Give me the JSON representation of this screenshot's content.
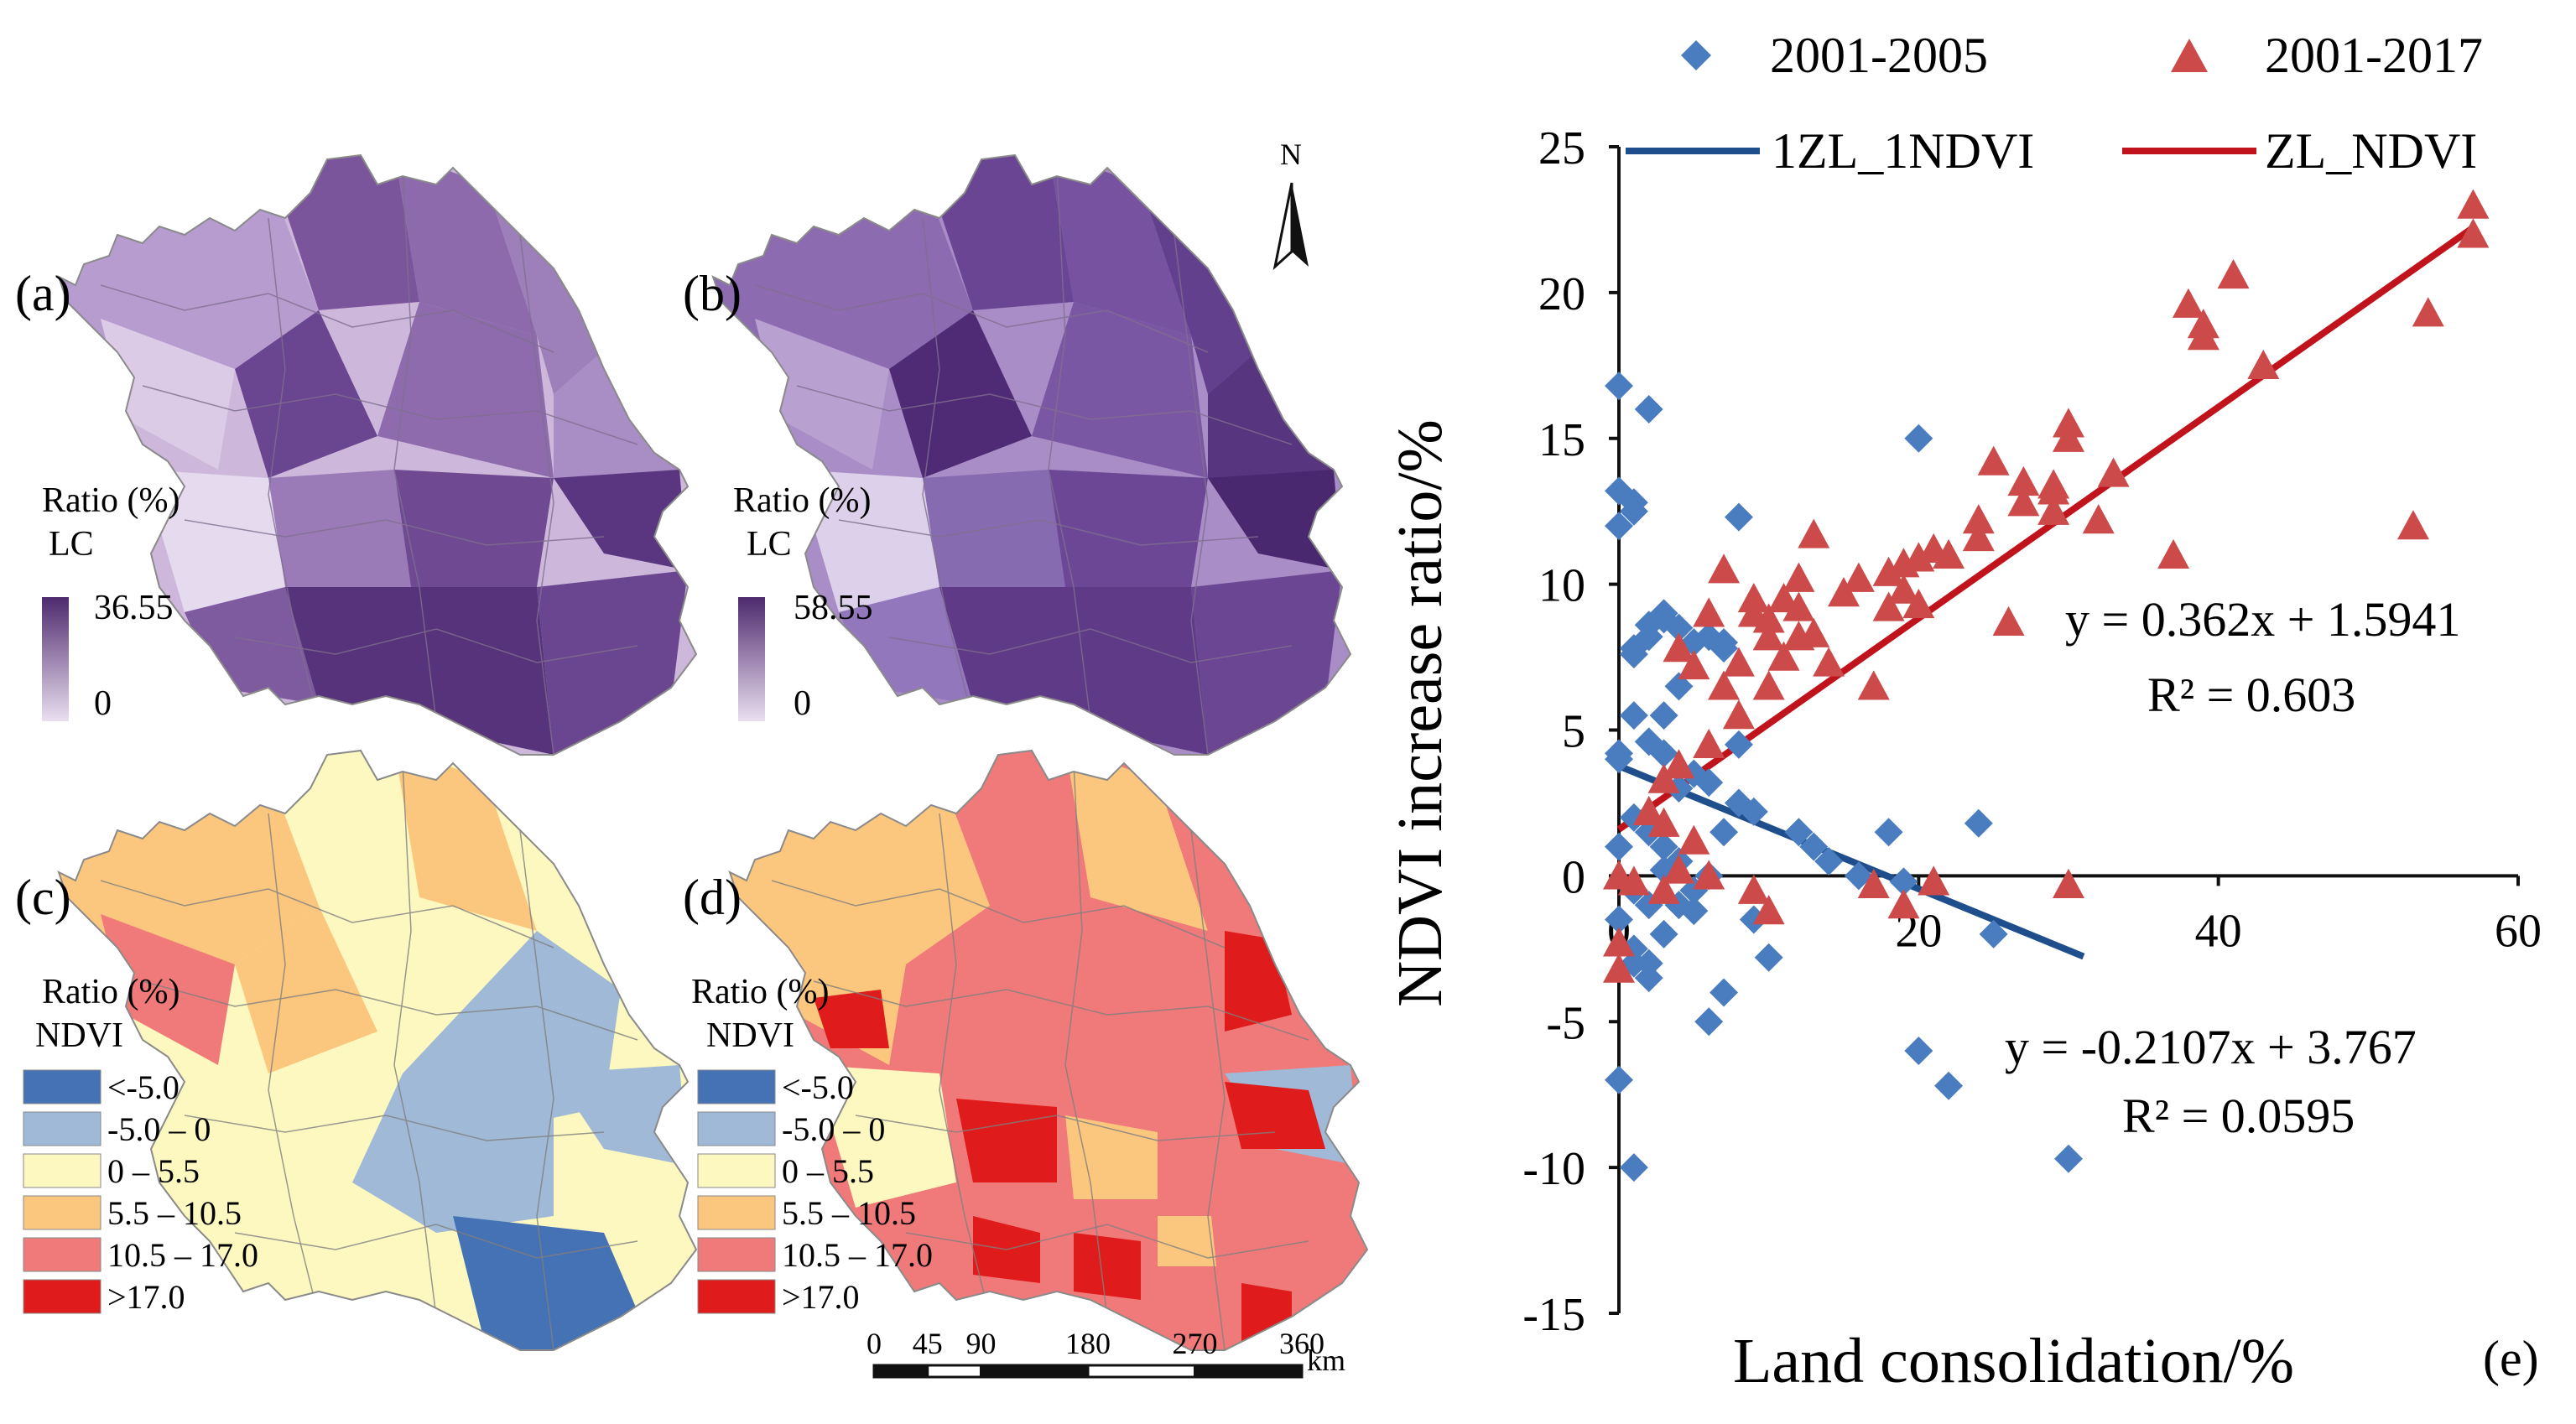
{
  "figure": {
    "panel_tags": {
      "a": "(a)",
      "b": "(b)",
      "c": "(c)",
      "d": "(d)",
      "e": "(e)"
    },
    "north_label": "N",
    "scale_bar": {
      "ticks": [
        "0",
        "45",
        "90",
        "180",
        "270",
        "360"
      ],
      "unit": "km"
    }
  },
  "maps": {
    "lc_a": {
      "ratio_label": "Ratio (%)",
      "var_label": "LC",
      "max": "36.55",
      "min": "0"
    },
    "lc_b": {
      "ratio_label": "Ratio (%)",
      "var_label": "LC",
      "max": "58.55",
      "min": "0"
    },
    "ndvi_c": {
      "ratio_label": "Ratio (%)",
      "var_label": "NDVI"
    },
    "ndvi_d": {
      "ratio_label": "Ratio (%)",
      "var_label": "NDVI"
    },
    "ndvi_classes": [
      {
        "label": "<-5.0",
        "color": "#4472b4"
      },
      {
        "label": "-5.0 – 0",
        "color": "#9fb9d6"
      },
      {
        "label": "0 – 5.5",
        "color": "#fdf8c0"
      },
      {
        "label": "5.5 – 10.5",
        "color": "#fbc77e"
      },
      {
        "label": "10.5 – 17.0",
        "color": "#f07a7a"
      },
      {
        "label": ">17.0",
        "color": "#e01b1b"
      }
    ],
    "lc_colors": {
      "low": "#eadff0",
      "high": "#4e2a6e"
    }
  },
  "chart_data": {
    "type": "scatter",
    "title": "",
    "xlabel": "Land consolidation/%",
    "ylabel": "NDVI  increase ratio/%",
    "xlim": [
      0,
      60
    ],
    "ylim": [
      -15,
      25
    ],
    "xticks": [
      0,
      20,
      40,
      60
    ],
    "yticks": [
      -15,
      -10,
      -5,
      0,
      5,
      10,
      15,
      20,
      25
    ],
    "series": [
      {
        "name": "2001-2005",
        "marker": "diamond",
        "color": "#4a7cc0",
        "points": [
          [
            0,
            16.8
          ],
          [
            0,
            13.2
          ],
          [
            0,
            12
          ],
          [
            1,
            12.5
          ],
          [
            1,
            12.8
          ],
          [
            2,
            16
          ],
          [
            0,
            4.2
          ],
          [
            0,
            4
          ],
          [
            0,
            1
          ],
          [
            0,
            -1.5
          ],
          [
            0,
            -7
          ],
          [
            1,
            -10
          ],
          [
            1,
            5.5
          ],
          [
            1,
            7.8
          ],
          [
            1,
            7.6
          ],
          [
            2,
            8.2
          ],
          [
            2,
            8.6
          ],
          [
            3,
            9
          ],
          [
            3,
            8.8
          ],
          [
            4,
            8.5
          ],
          [
            5,
            8
          ],
          [
            6,
            8.2
          ],
          [
            7,
            8
          ],
          [
            7,
            7.8
          ],
          [
            3,
            5.5
          ],
          [
            2,
            4.6
          ],
          [
            3,
            4.2
          ],
          [
            4,
            3
          ],
          [
            5,
            3.5
          ],
          [
            6,
            3.2
          ],
          [
            8,
            2.5
          ],
          [
            9,
            2.2
          ],
          [
            1,
            2
          ],
          [
            2,
            1.5
          ],
          [
            3,
            1
          ],
          [
            4,
            0.5
          ],
          [
            6,
            0
          ],
          [
            7,
            1.5
          ],
          [
            1,
            -0.5
          ],
          [
            2,
            -1
          ],
          [
            3,
            -2
          ],
          [
            1,
            -2.5
          ],
          [
            2,
            -3
          ],
          [
            4,
            -1
          ],
          [
            5,
            -0.5
          ],
          [
            1,
            -3
          ],
          [
            2,
            -3.5
          ],
          [
            7,
            -4
          ],
          [
            6,
            -5
          ],
          [
            9,
            -1.5
          ],
          [
            10,
            -2.8
          ],
          [
            12,
            1.5
          ],
          [
            13,
            1
          ],
          [
            14,
            0.5
          ],
          [
            16,
            0
          ],
          [
            8,
            12.3
          ],
          [
            20,
            15
          ],
          [
            19,
            -0.2
          ],
          [
            18,
            1.5
          ],
          [
            24,
            1.8
          ],
          [
            25,
            -2
          ],
          [
            20,
            -6
          ],
          [
            22,
            -7.2
          ],
          [
            30,
            -9.7
          ],
          [
            5,
            -1.2
          ],
          [
            3,
            0.2
          ],
          [
            8,
            4.5
          ],
          [
            4,
            6.5
          ]
        ]
      },
      {
        "name": "2001-2017",
        "marker": "triangle",
        "color": "#cc4a4a",
        "points": [
          [
            57,
            23
          ],
          [
            57,
            22
          ],
          [
            41,
            20.6
          ],
          [
            38,
            19.6
          ],
          [
            39,
            18.9
          ],
          [
            39,
            18.5
          ],
          [
            43,
            17.5
          ],
          [
            54,
            19.3
          ],
          [
            37,
            11
          ],
          [
            53,
            12
          ],
          [
            30,
            15.5
          ],
          [
            30,
            15
          ],
          [
            29,
            13.4
          ],
          [
            29,
            13.2
          ],
          [
            29,
            12.5
          ],
          [
            33,
            13.8
          ],
          [
            32,
            12.2
          ],
          [
            27,
            13.5
          ],
          [
            27,
            12.8
          ],
          [
            25,
            14.2
          ],
          [
            24,
            12.2
          ],
          [
            24,
            11.6
          ],
          [
            21,
            11.2
          ],
          [
            22,
            11
          ],
          [
            20,
            10.9
          ],
          [
            19,
            10.7
          ],
          [
            18,
            10.4
          ],
          [
            19,
            9.8
          ],
          [
            16,
            10.2
          ],
          [
            15,
            9.7
          ],
          [
            18,
            9.2
          ],
          [
            20,
            9.3
          ],
          [
            13,
            11.7
          ],
          [
            12,
            10.2
          ],
          [
            11,
            9.5
          ],
          [
            12,
            9.2
          ],
          [
            10,
            8.8
          ],
          [
            9,
            9.5
          ],
          [
            9,
            9
          ],
          [
            10,
            8.2
          ],
          [
            12,
            8.2
          ],
          [
            13,
            8.3
          ],
          [
            14,
            7.3
          ],
          [
            7,
            10.5
          ],
          [
            6,
            9
          ],
          [
            8,
            7.3
          ],
          [
            8,
            5.5
          ],
          [
            7,
            6.5
          ],
          [
            5,
            7.2
          ],
          [
            4,
            7.8
          ],
          [
            10,
            6.5
          ],
          [
            11,
            7.5
          ],
          [
            26,
            8.7
          ],
          [
            17,
            6.5
          ],
          [
            6,
            4.5
          ],
          [
            4,
            3.8
          ],
          [
            3,
            3.3
          ],
          [
            2,
            2.2
          ],
          [
            3,
            1.8
          ],
          [
            5,
            1.2
          ],
          [
            4,
            0.2
          ],
          [
            6,
            0
          ],
          [
            3,
            -0.5
          ],
          [
            1,
            -0.2
          ],
          [
            9,
            -0.5
          ],
          [
            10,
            -1.2
          ],
          [
            0,
            -3.2
          ],
          [
            0,
            -2.3
          ],
          [
            0,
            0
          ],
          [
            17,
            -0.3
          ],
          [
            19,
            -1
          ],
          [
            21,
            -0.2
          ],
          [
            30,
            -0.3
          ]
        ]
      }
    ],
    "trendlines": [
      {
        "name": "1ZL_1NDVI",
        "slope": -0.2107,
        "intercept": 3.767,
        "x_range": [
          0,
          31
        ],
        "color": "#1f4e8c",
        "equation": "y = -0.2107x + 3.767",
        "r2": "R² = 0.0595"
      },
      {
        "name": "ZL_NDVI",
        "slope": 0.362,
        "intercept": 1.5941,
        "x_range": [
          0,
          57
        ],
        "color": "#c0131b",
        "equation": "y = 0.362x + 1.5941",
        "r2": "R² = 0.603"
      }
    ],
    "legend": {
      "series": [
        "2001-2005",
        "2001-2017"
      ],
      "lines": [
        "1ZL_1NDVI",
        "ZL_NDVI"
      ]
    }
  }
}
